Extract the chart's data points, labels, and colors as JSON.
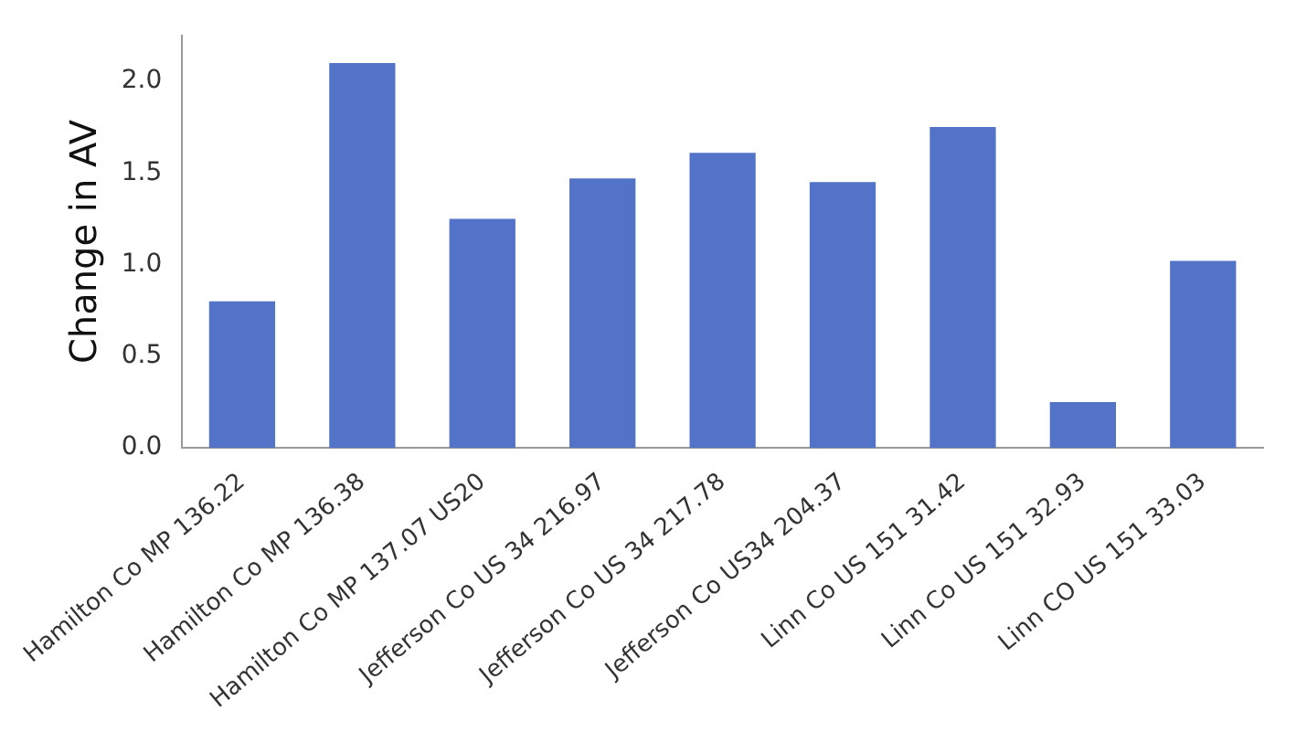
{
  "chart_data": {
    "type": "bar",
    "ylabel": "Change in AV",
    "categories": [
      "Hamilton Co MP 136.22",
      "Hamilton Co MP 136.38",
      "Hamilton Co MP 137.07 US20",
      "Jefferson Co US 34 216.97",
      "Jefferson Co US 34 217.78",
      "Jefferson Co US34 204.37",
      "Linn Co US 151 31.42",
      "Linn Co US 151 32.93",
      "Linn CO US 151 33.03"
    ],
    "values": [
      0.8,
      2.1,
      1.25,
      1.47,
      1.61,
      1.45,
      1.75,
      0.25,
      1.02
    ],
    "color": "#5273c7",
    "ylim": [
      0,
      2.25
    ],
    "yticks": [
      {
        "value": 0,
        "label": "0.0"
      },
      0.5,
      {
        "value": 1,
        "label": "1.0"
      },
      1.5,
      {
        "value": 2,
        "label": "2.0"
      }
    ],
    "grid": false,
    "legend": false
  }
}
